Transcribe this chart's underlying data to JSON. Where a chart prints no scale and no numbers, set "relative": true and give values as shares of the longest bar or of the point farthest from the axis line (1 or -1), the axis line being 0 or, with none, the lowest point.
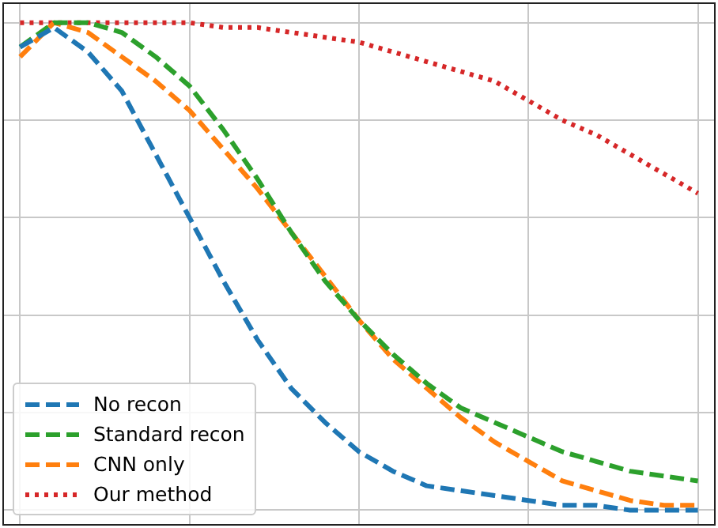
{
  "chart_data": {
    "type": "line",
    "relative": true,
    "grid": true,
    "legend": "bottom left",
    "tick_labels": false,
    "categories": [
      null,
      null,
      null,
      null,
      null,
      null,
      null,
      null,
      null,
      null,
      null,
      null,
      null,
      null,
      null,
      null,
      null,
      null,
      null,
      null,
      null
    ],
    "series": [
      {
        "name": "No recon",
        "color": "#1f77b4",
        "line_style": "dashed",
        "values": [
          0.95,
          0.99,
          0.94,
          0.86,
          0.73,
          0.6,
          0.47,
          0.35,
          0.25,
          0.18,
          0.12,
          0.08,
          0.05,
          0.04,
          0.03,
          0.02,
          0.01,
          0.01,
          0.0,
          0.0,
          0.0
        ]
      },
      {
        "name": "Standard recon",
        "color": "#2ca02c",
        "line_style": "dashed",
        "values": [
          0.95,
          1.0,
          1.0,
          0.98,
          0.93,
          0.87,
          0.78,
          0.68,
          0.57,
          0.47,
          0.39,
          0.32,
          0.26,
          0.21,
          0.18,
          0.15,
          0.12,
          0.1,
          0.08,
          0.07,
          0.06
        ]
      },
      {
        "name": "CNN only",
        "color": "#ff7f0e",
        "line_style": "dashed",
        "values": [
          0.93,
          1.0,
          0.98,
          0.93,
          0.88,
          0.82,
          0.74,
          0.66,
          0.57,
          0.48,
          0.39,
          0.31,
          0.25,
          0.19,
          0.14,
          0.1,
          0.06,
          0.04,
          0.02,
          0.01,
          0.01
        ]
      },
      {
        "name": "Our method",
        "color": "#d62728",
        "line_style": "dotted",
        "values": [
          1.0,
          1.0,
          1.0,
          1.0,
          1.0,
          1.0,
          0.99,
          0.99,
          0.98,
          0.97,
          0.96,
          0.94,
          0.92,
          0.9,
          0.88,
          0.84,
          0.8,
          0.77,
          0.73,
          0.69,
          0.65
        ]
      }
    ]
  }
}
